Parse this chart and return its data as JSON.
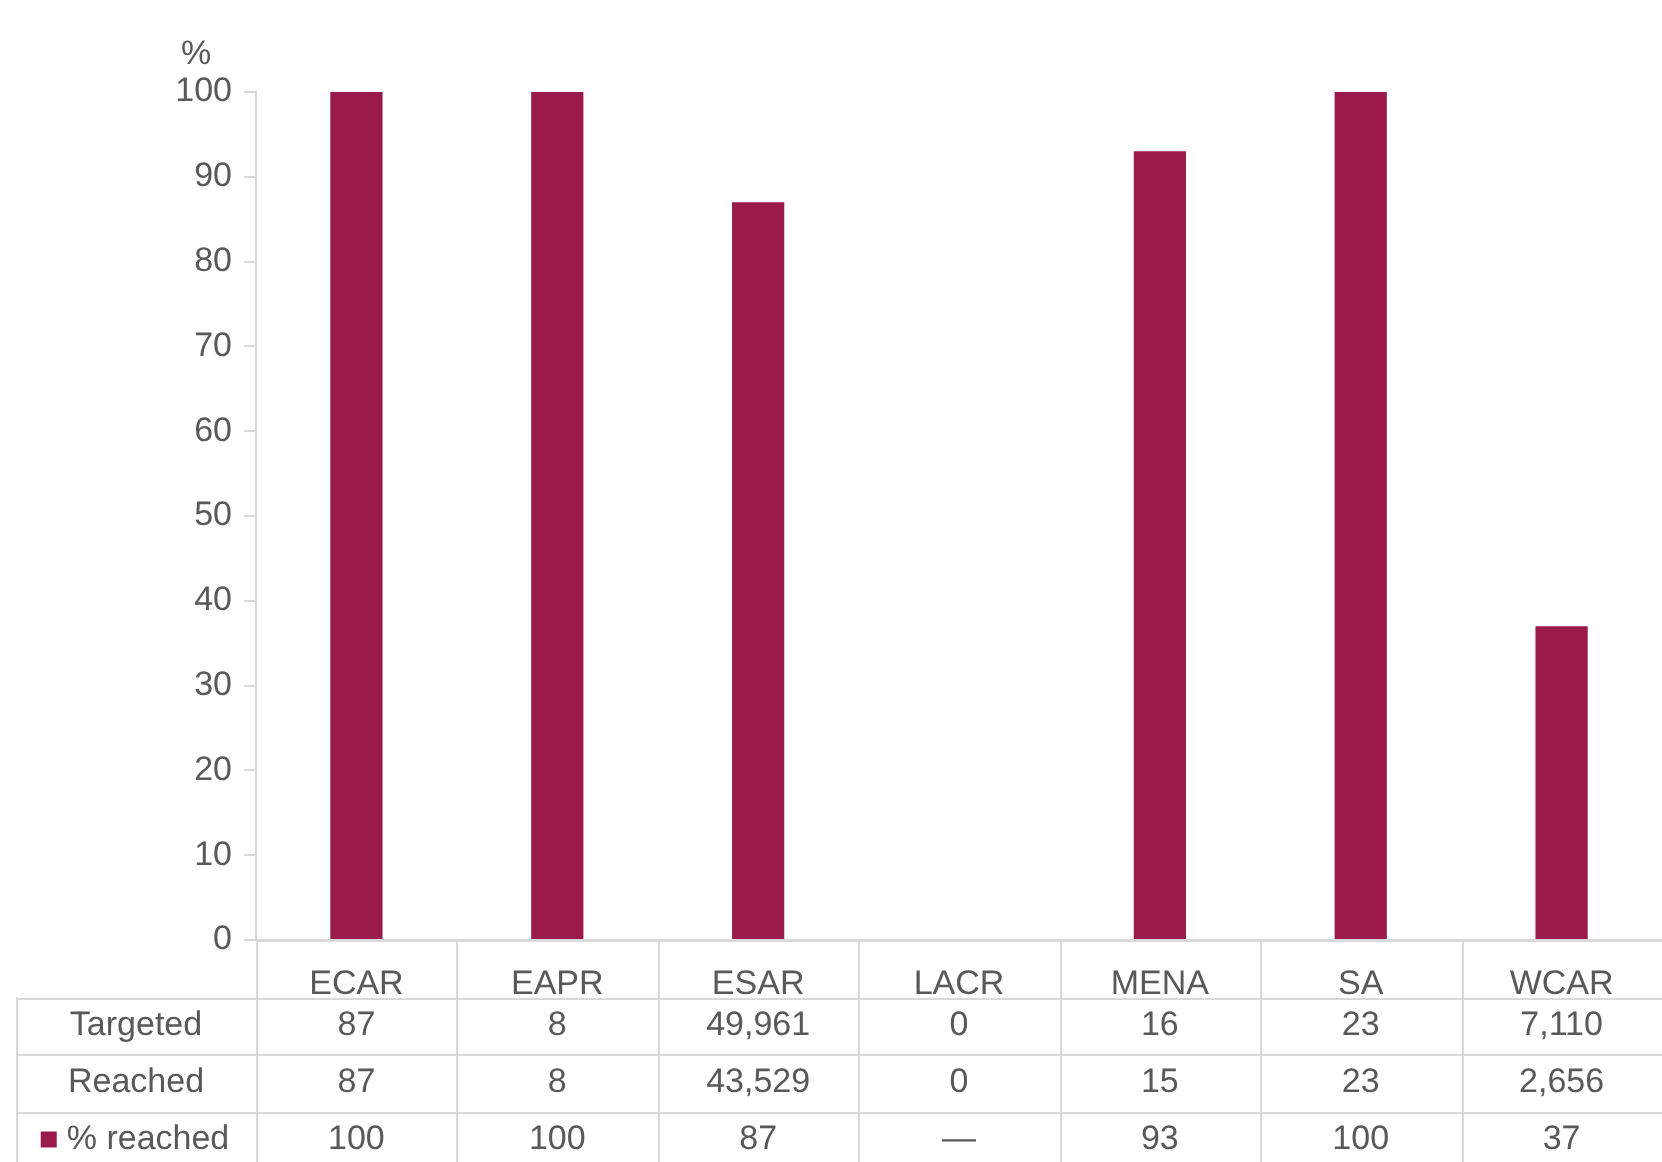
{
  "chart_data": {
    "type": "bar",
    "ylabel": "%",
    "categories": [
      "ECAR",
      "EAPR",
      "ESAR",
      "LACR",
      "MENA",
      "SA",
      "WCAR"
    ],
    "annotations": [
      "Targeted",
      "87",
      "8",
      "49,961",
      "0",
      "16",
      "23",
      "7,110",
      "Reached",
      "87",
      "8",
      "43,529",
      "0",
      "15",
      "23",
      "2,656"
    ],
    "series": [
      {
        "name": "% reached",
        "color": "#9a1b4b",
        "values": [
          100,
          100,
          87,
          null,
          93,
          100,
          37
        ],
        "value_labels": [
          "100",
          "100",
          "87",
          "—",
          "93",
          "100",
          "37"
        ]
      }
    ],
    "ylim": [
      0,
      100
    ],
    "yticks": [
      0,
      10,
      20,
      30,
      40,
      50,
      60,
      70,
      80,
      90,
      100
    ],
    "grid": false,
    "legend": "bottom"
  }
}
